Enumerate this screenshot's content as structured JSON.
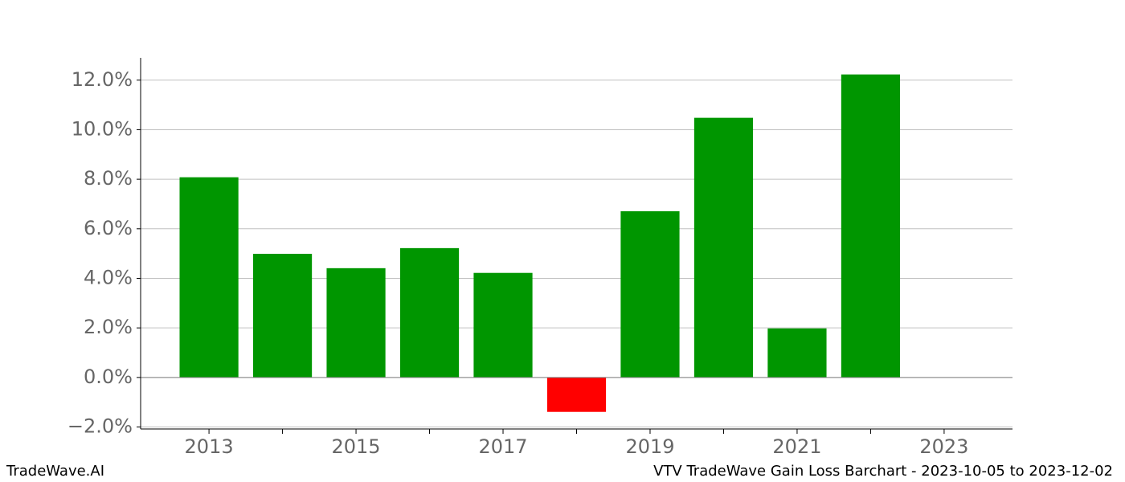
{
  "chart_data": {
    "type": "bar",
    "x": [
      2013,
      2014,
      2015,
      2016,
      2017,
      2018,
      2019,
      2020,
      2021,
      2022
    ],
    "values": [
      8.08,
      4.99,
      4.41,
      5.22,
      4.22,
      -1.39,
      6.71,
      10.48,
      1.98,
      12.23
    ],
    "color_positive": "#009600",
    "color_negative": "#ff0000",
    "xlim": [
      2012.07,
      2023.93
    ],
    "ylim": [
      -2.08,
      12.9
    ],
    "xticks": [
      2013,
      2015,
      2017,
      2019,
      2021,
      2023
    ],
    "xminorticks": [
      2014,
      2016,
      2018,
      2020,
      2022
    ],
    "yticks": [
      {
        "value": -2,
        "label": "−2.0%"
      },
      {
        "value": 0,
        "label": "0.0%"
      },
      {
        "value": 2,
        "label": "2.0%"
      },
      {
        "value": 4,
        "label": "4.0%"
      },
      {
        "value": 6,
        "label": "6.0%"
      },
      {
        "value": 8,
        "label": "8.0%"
      },
      {
        "value": 10,
        "label": "10.0%"
      },
      {
        "value": 12,
        "label": "12.0%"
      }
    ],
    "grid": true,
    "footer_left": "TradeWave.AI",
    "footer_right": "VTV TradeWave Gain Loss Barchart - 2023-10-05 to 2023-12-02"
  }
}
